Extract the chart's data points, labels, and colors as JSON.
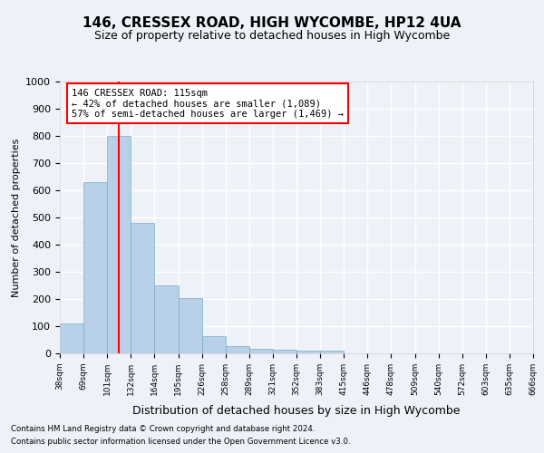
{
  "title": "146, CRESSEX ROAD, HIGH WYCOMBE, HP12 4UA",
  "subtitle": "Size of property relative to detached houses in High Wycombe",
  "xlabel": "Distribution of detached houses by size in High Wycombe",
  "ylabel": "Number of detached properties",
  "footnote1": "Contains HM Land Registry data © Crown copyright and database right 2024.",
  "footnote2": "Contains public sector information licensed under the Open Government Licence v3.0.",
  "bar_values": [
    110,
    630,
    800,
    480,
    250,
    205,
    62,
    28,
    18,
    14,
    10,
    10,
    0,
    0,
    0,
    0,
    0,
    0,
    0,
    0
  ],
  "categories": [
    "38sqm",
    "69sqm",
    "101sqm",
    "132sqm",
    "164sqm",
    "195sqm",
    "226sqm",
    "258sqm",
    "289sqm",
    "321sqm",
    "352sqm",
    "383sqm",
    "415sqm",
    "446sqm",
    "478sqm",
    "509sqm",
    "540sqm",
    "572sqm",
    "603sqm",
    "635sqm",
    "666sqm"
  ],
  "bar_color": "#b8d0e8",
  "bar_edge_color": "#7aaec8",
  "vline_color": "red",
  "vline_position": 2.5,
  "annotation_text": "146 CRESSEX ROAD: 115sqm\n← 42% of detached houses are smaller (1,089)\n57% of semi-detached houses are larger (1,469) →",
  "annotation_box_color": "white",
  "annotation_box_edge_color": "red",
  "ylim": [
    0,
    1000
  ],
  "yticks": [
    0,
    100,
    200,
    300,
    400,
    500,
    600,
    700,
    800,
    900,
    1000
  ],
  "bg_color": "#eef2f8",
  "grid_color": "white",
  "title_fontsize": 11,
  "subtitle_fontsize": 9,
  "ylabel_fontsize": 8,
  "xlabel_fontsize": 9
}
